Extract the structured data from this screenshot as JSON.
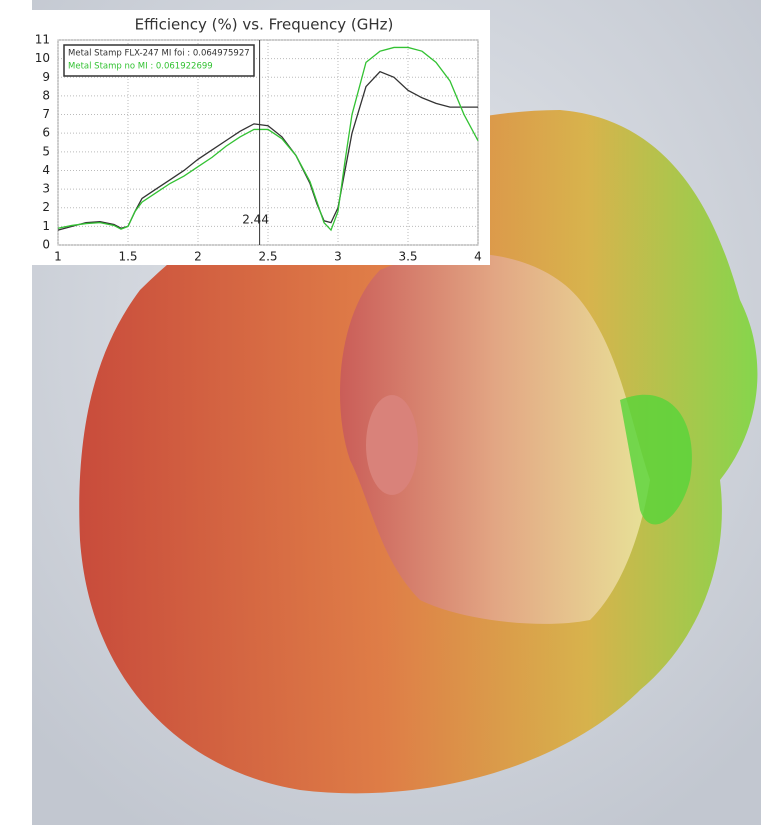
{
  "chart_data": {
    "type": "line",
    "title": "Efficiency (%) vs. Frequency (GHz)",
    "x": [
      1.0,
      1.1,
      1.2,
      1.3,
      1.4,
      1.45,
      1.5,
      1.55,
      1.6,
      1.7,
      1.8,
      1.9,
      2.0,
      2.1,
      2.2,
      2.3,
      2.4,
      2.5,
      2.6,
      2.7,
      2.8,
      2.85,
      2.9,
      2.95,
      3.0,
      3.05,
      3.1,
      3.2,
      3.3,
      3.4,
      3.5,
      3.6,
      3.7,
      3.8,
      3.9,
      4.0
    ],
    "series": [
      {
        "name": "Metal Stamp FLX-247 MI foi : 0.064975927",
        "color": "#333333",
        "values": [
          0.8,
          1.0,
          1.2,
          1.25,
          1.1,
          0.9,
          1.0,
          1.8,
          2.5,
          3.0,
          3.5,
          4.0,
          4.6,
          5.1,
          5.6,
          6.1,
          6.5,
          6.4,
          5.8,
          4.8,
          3.3,
          2.2,
          1.3,
          1.2,
          2.0,
          4.0,
          6.0,
          8.5,
          9.3,
          9.0,
          8.3,
          7.9,
          7.6,
          7.4,
          7.4,
          7.4
        ]
      },
      {
        "name": "Metal Stamp no MI : 0.061922699",
        "color": "#33c233",
        "values": [
          0.9,
          1.05,
          1.15,
          1.2,
          1.05,
          0.85,
          1.0,
          1.8,
          2.3,
          2.8,
          3.3,
          3.7,
          4.2,
          4.7,
          5.3,
          5.8,
          6.2,
          6.2,
          5.7,
          4.8,
          3.4,
          2.3,
          1.2,
          0.8,
          1.8,
          4.5,
          7.0,
          9.8,
          10.4,
          10.6,
          10.6,
          10.4,
          9.8,
          8.8,
          7.0,
          5.6
        ]
      }
    ],
    "marker": 2.44,
    "xlim": [
      1,
      4
    ],
    "xticks": [
      1,
      1.5,
      2,
      2.5,
      3,
      3.5,
      4
    ],
    "ylim": [
      0,
      11
    ],
    "yticks": [
      0,
      1,
      2,
      3,
      4,
      5,
      6,
      7,
      8,
      9,
      10,
      11
    ],
    "grid": true
  }
}
